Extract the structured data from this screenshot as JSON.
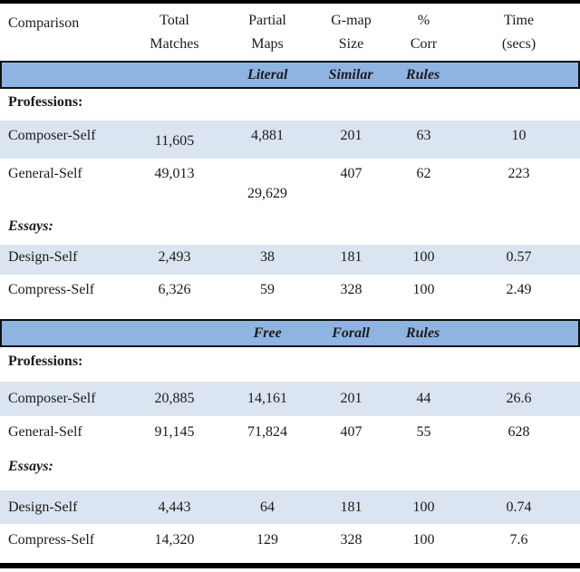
{
  "table": {
    "columns": [
      {
        "line1": "Comparison",
        "line2": ""
      },
      {
        "line1": "Total",
        "line2": "Matches"
      },
      {
        "line1": "Partial",
        "line2": "Maps"
      },
      {
        "line1": "G-map",
        "line2": "Size"
      },
      {
        "line1": "%",
        "line2": "Corr"
      },
      {
        "line1": "Time",
        "line2": "(secs)"
      }
    ],
    "sections": [
      {
        "band": [
          "Literal",
          "Similar",
          "Rules"
        ],
        "groups": [
          {
            "label": "Professions:",
            "rows": [
              {
                "label": "Composer-Self",
                "values": [
                  "11,605",
                  "4,881",
                  "201",
                  "63",
                  "10"
                ]
              },
              {
                "label": "General-Self",
                "values": [
                  "49,013",
                  "29,629",
                  "407",
                  "62",
                  "223"
                ]
              }
            ]
          },
          {
            "label": "Essays:",
            "rows": [
              {
                "label": "Design-Self",
                "values": [
                  "2,493",
                  "38",
                  "181",
                  "100",
                  "0.57"
                ]
              },
              {
                "label": "Compress-Self",
                "values": [
                  "6,326",
                  "59",
                  "328",
                  "100",
                  "2.49"
                ]
              }
            ]
          }
        ]
      },
      {
        "band": [
          "Free",
          "Forall",
          "Rules"
        ],
        "groups": [
          {
            "label": "Professions:",
            "rows": [
              {
                "label": "Composer-Self",
                "values": [
                  "20,885",
                  "14,161",
                  "201",
                  "44",
                  "26.6"
                ]
              },
              {
                "label": "General-Self",
                "values": [
                  "91,145",
                  "71,824",
                  "407",
                  "55",
                  "628"
                ]
              }
            ]
          },
          {
            "label": "Essays:",
            "rows": [
              {
                "label": "Design-Self",
                "values": [
                  "4,443",
                  "64",
                  "181",
                  "100",
                  "0.74"
                ]
              },
              {
                "label": "Compress-Self",
                "values": [
                  "14,320",
                  "129",
                  "328",
                  "100",
                  "7.6"
                ]
              }
            ]
          }
        ]
      }
    ],
    "colors": {
      "band": "#8fb4e2",
      "row_shade": "#dbe5f1",
      "border": "#000000"
    }
  }
}
